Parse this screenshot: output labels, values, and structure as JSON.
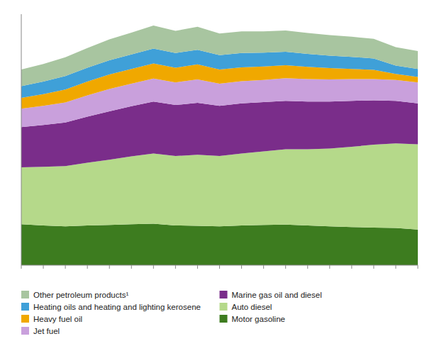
{
  "chart_data": {
    "type": "area",
    "stacked": true,
    "categories": [
      null,
      null,
      null,
      null,
      null,
      null,
      null,
      null,
      null,
      null,
      null,
      null,
      null,
      null,
      null,
      null,
      null,
      null,
      null
    ],
    "series": [
      {
        "name": "Motor gasoline",
        "color": "#3d7c1f",
        "values": [
          490,
          475,
          465,
          475,
          480,
          490,
          495,
          475,
          470,
          465,
          475,
          480,
          485,
          475,
          465,
          455,
          450,
          445,
          425
        ]
      },
      {
        "name": "Auto diesel",
        "color": "#b5d98a",
        "values": [
          680,
          700,
          720,
          750,
          780,
          810,
          840,
          830,
          850,
          840,
          860,
          880,
          900,
          910,
          930,
          960,
          990,
          1010,
          1020
        ]
      },
      {
        "name": "Marine gas oil and diesel",
        "color": "#7a2d8a",
        "values": [
          480,
          500,
          520,
          550,
          580,
          600,
          620,
          610,
          620,
          600,
          600,
          590,
          580,
          570,
          560,
          550,
          530,
          510,
          490
        ]
      },
      {
        "name": "Jet fuel",
        "color": "#c9a0dc",
        "values": [
          220,
          230,
          240,
          255,
          265,
          270,
          275,
          270,
          280,
          265,
          265,
          265,
          270,
          270,
          265,
          260,
          255,
          250,
          250
        ]
      },
      {
        "name": "Heavy fuel oil",
        "color": "#f0a800",
        "values": [
          130,
          140,
          155,
          165,
          175,
          175,
          180,
          175,
          180,
          170,
          165,
          160,
          155,
          145,
          135,
          120,
          110,
          70,
          65
        ]
      },
      {
        "name": "Heating oils and heating and lighting kerosene",
        "color": "#3fa0d8",
        "values": [
          140,
          150,
          160,
          165,
          170,
          175,
          180,
          175,
          175,
          170,
          170,
          165,
          160,
          155,
          150,
          145,
          135,
          100,
          95
        ]
      },
      {
        "name": "Other petroleum products¹",
        "color": "#a8c5a0",
        "values": [
          200,
          210,
          225,
          235,
          250,
          260,
          275,
          265,
          275,
          260,
          260,
          255,
          255,
          250,
          245,
          240,
          235,
          220,
          215
        ]
      }
    ],
    "ylim": [
      0,
      3000
    ],
    "tick_labels": false,
    "grid": false,
    "legend": "bottom"
  }
}
